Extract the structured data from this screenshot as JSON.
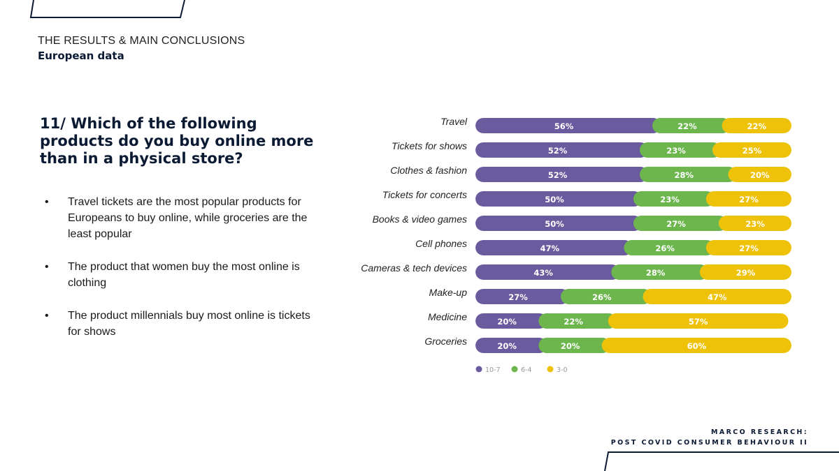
{
  "header": {
    "kicker": "THE RESULTS & MAIN CONCLUSIONS",
    "subtitle": "European data"
  },
  "question": "11/ Which of the following products do you buy online more than in a physical store?",
  "bullets": [
    "Travel tickets are the most popular products for Europeans to buy online, while groceries are the least popular",
    "The product that women buy the most online is clothing",
    "The product millennials buy most online is tickets for shows"
  ],
  "footer": {
    "line1": "MARCO RESEARCH:",
    "line2": "POST COVID CONSUMER BEHAVIOUR II"
  },
  "colors": {
    "series1": "#6a5a9e",
    "series2": "#6db64d",
    "series3": "#efc20a",
    "navy": "#0b1a33"
  },
  "chart_data": {
    "type": "bar",
    "orientation": "horizontal-stacked-100",
    "categories": [
      "Travel",
      "Tickets for shows",
      "Clothes & fashion",
      "Tickets for concerts",
      "Books & video games",
      "Cell phones",
      "Cameras & tech devices",
      "Make-up",
      "Medicine",
      "Groceries"
    ],
    "series": [
      {
        "name": "10-7",
        "values": [
          56,
          52,
          52,
          50,
          50,
          47,
          43,
          27,
          20,
          20
        ]
      },
      {
        "name": "6-4",
        "values": [
          22,
          23,
          28,
          23,
          27,
          26,
          28,
          26,
          22,
          20
        ]
      },
      {
        "name": "3-0",
        "values": [
          22,
          25,
          20,
          27,
          23,
          27,
          29,
          47,
          57,
          60
        ]
      }
    ],
    "value_suffix": "%",
    "legend": "bottom-left",
    "xlim": [
      0,
      100
    ]
  }
}
